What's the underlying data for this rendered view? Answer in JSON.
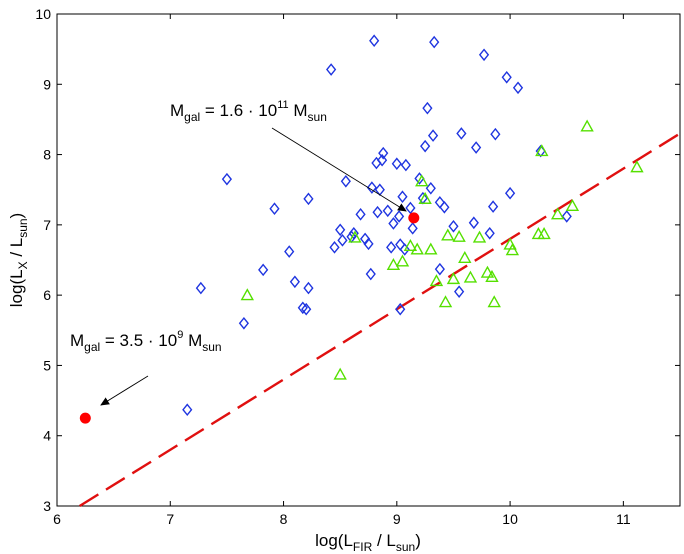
{
  "chart_data": {
    "type": "scatter",
    "title": "",
    "xlabel": {
      "base": "log(L",
      "sub": "FIR",
      "mid": " / L",
      "sub2": "sun",
      "end": ")"
    },
    "ylabel": {
      "base": "log(L",
      "sub": "X",
      "mid": " / L",
      "sub2": "sun",
      "end": ")"
    },
    "xlim": [
      6,
      11.5
    ],
    "ylim": [
      3,
      10
    ],
    "xticks": [
      6,
      7,
      8,
      9,
      10,
      11
    ],
    "yticks": [
      3,
      4,
      5,
      6,
      7,
      8,
      9,
      10
    ],
    "grid": false,
    "colors": {
      "diamond": "#1f35e0",
      "triangle": "#55e000",
      "line": "#e01010",
      "highlight": "#ff0000"
    },
    "series": [
      {
        "name": "diamonds",
        "marker": "diamond",
        "points": [
          [
            7.15,
            4.37
          ],
          [
            7.27,
            6.1
          ],
          [
            7.5,
            7.65
          ],
          [
            7.65,
            5.6
          ],
          [
            7.82,
            6.36
          ],
          [
            7.92,
            7.23
          ],
          [
            8.05,
            6.62
          ],
          [
            8.1,
            6.19
          ],
          [
            8.17,
            5.82
          ],
          [
            8.2,
            5.8
          ],
          [
            8.22,
            6.1
          ],
          [
            8.22,
            7.37
          ],
          [
            8.42,
            9.21
          ],
          [
            8.45,
            6.68
          ],
          [
            8.5,
            6.93
          ],
          [
            8.52,
            6.78
          ],
          [
            8.55,
            7.62
          ],
          [
            8.6,
            6.83
          ],
          [
            8.62,
            6.88
          ],
          [
            8.68,
            7.15
          ],
          [
            8.72,
            6.8
          ],
          [
            8.75,
            6.73
          ],
          [
            8.77,
            6.3
          ],
          [
            8.78,
            7.53
          ],
          [
            8.8,
            9.62
          ],
          [
            8.82,
            7.88
          ],
          [
            8.83,
            7.18
          ],
          [
            8.85,
            7.5
          ],
          [
            8.87,
            7.92
          ],
          [
            8.88,
            8.02
          ],
          [
            8.92,
            7.2
          ],
          [
            8.95,
            6.68
          ],
          [
            8.97,
            7.02
          ],
          [
            9.0,
            7.87
          ],
          [
            9.02,
            7.12
          ],
          [
            9.03,
            6.72
          ],
          [
            9.03,
            5.8
          ],
          [
            9.05,
            7.4
          ],
          [
            9.07,
            6.65
          ],
          [
            9.08,
            7.85
          ],
          [
            9.12,
            7.24
          ],
          [
            9.14,
            6.95
          ],
          [
            9.2,
            7.66
          ],
          [
            9.23,
            7.38
          ],
          [
            9.25,
            8.12
          ],
          [
            9.27,
            8.66
          ],
          [
            9.3,
            7.52
          ],
          [
            9.32,
            8.27
          ],
          [
            9.33,
            9.6
          ],
          [
            9.38,
            7.32
          ],
          [
            9.38,
            6.37
          ],
          [
            9.42,
            7.25
          ],
          [
            9.5,
            6.98
          ],
          [
            9.55,
            6.05
          ],
          [
            9.57,
            8.3
          ],
          [
            9.68,
            7.03
          ],
          [
            9.7,
            8.1
          ],
          [
            9.77,
            9.42
          ],
          [
            9.82,
            6.88
          ],
          [
            9.85,
            7.26
          ],
          [
            9.87,
            8.29
          ],
          [
            9.97,
            9.1
          ],
          [
            10.0,
            7.45
          ],
          [
            10.07,
            8.95
          ],
          [
            10.27,
            8.05
          ],
          [
            10.5,
            7.12
          ]
        ]
      },
      {
        "name": "triangles",
        "marker": "triangle",
        "points": [
          [
            7.68,
            6.0
          ],
          [
            8.5,
            4.87
          ],
          [
            8.63,
            6.82
          ],
          [
            8.97,
            6.43
          ],
          [
            9.05,
            6.48
          ],
          [
            9.12,
            6.7
          ],
          [
            9.18,
            6.65
          ],
          [
            9.22,
            7.62
          ],
          [
            9.25,
            7.37
          ],
          [
            9.3,
            6.65
          ],
          [
            9.35,
            6.2
          ],
          [
            9.43,
            5.9
          ],
          [
            9.45,
            6.85
          ],
          [
            9.5,
            6.23
          ],
          [
            9.55,
            6.83
          ],
          [
            9.6,
            6.53
          ],
          [
            9.65,
            6.25
          ],
          [
            9.73,
            6.82
          ],
          [
            9.8,
            6.32
          ],
          [
            9.84,
            6.26
          ],
          [
            9.86,
            5.9
          ],
          [
            10.0,
            6.72
          ],
          [
            10.02,
            6.64
          ],
          [
            10.25,
            6.87
          ],
          [
            10.28,
            8.05
          ],
          [
            10.3,
            6.87
          ],
          [
            10.42,
            7.15
          ],
          [
            10.55,
            7.27
          ],
          [
            10.68,
            8.4
          ],
          [
            11.12,
            7.82
          ]
        ]
      },
      {
        "name": "highlighted",
        "marker": "circle",
        "points": [
          [
            6.25,
            4.25
          ],
          [
            9.15,
            7.1
          ]
        ]
      }
    ],
    "line": {
      "style": "dashed",
      "points": [
        [
          6.2,
          3.0
        ],
        [
          11.5,
          8.3
        ]
      ]
    },
    "annotations": [
      {
        "prefix": "M",
        "sub": "gal",
        "middle": " = 3.5 · 10",
        "sup": "9",
        "suffix": " M",
        "sub2": "sun",
        "point": [
          6.25,
          4.25
        ]
      },
      {
        "prefix": "M",
        "sub": "gal",
        "middle": " = 1.6 · 10",
        "sup": "11",
        "suffix": " M",
        "sub2": "sun",
        "point": [
          9.15,
          7.1
        ]
      }
    ]
  }
}
